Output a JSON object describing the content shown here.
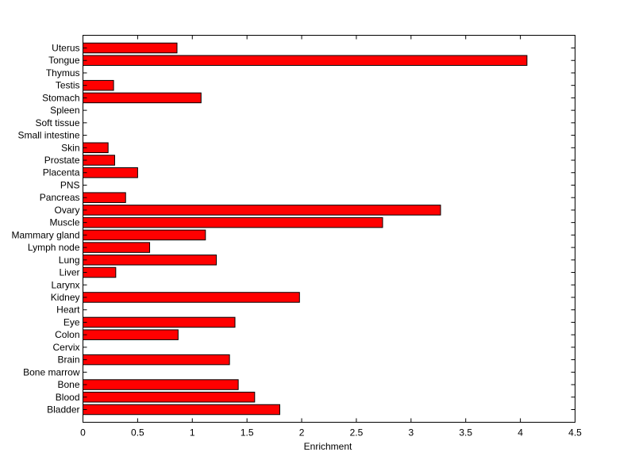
{
  "chart_data": {
    "type": "bar",
    "orientation": "horizontal",
    "title": "",
    "xlabel": "Enrichment",
    "ylabel": "",
    "xlim": [
      0,
      4.5
    ],
    "xticks": [
      "0",
      "0.5",
      "1",
      "1.5",
      "2",
      "2.5",
      "3",
      "3.5",
      "4",
      "4.5"
    ],
    "grid": false,
    "bar_color": "#ff0000",
    "categories": [
      "Bladder",
      "Blood",
      "Bone",
      "Bone marrow",
      "Brain",
      "Cervix",
      "Colon",
      "Eye",
      "Heart",
      "Kidney",
      "Larynx",
      "Liver",
      "Lung",
      "Lymph node",
      "Mammary gland",
      "Muscle",
      "Ovary",
      "Pancreas",
      "PNS",
      "Placenta",
      "Prostate",
      "Skin",
      "Small intestine",
      "Soft tissue",
      "Spleen",
      "Stomach",
      "Testis",
      "Thymus",
      "Tongue",
      "Uterus"
    ],
    "values": [
      1.8,
      1.57,
      1.42,
      0,
      1.34,
      0,
      0.87,
      1.39,
      0,
      1.98,
      0,
      0.3,
      1.22,
      0.61,
      1.12,
      2.74,
      3.27,
      0.39,
      0,
      0.5,
      0.29,
      0.23,
      0,
      0,
      0,
      1.08,
      0.28,
      0,
      4.06,
      0.86
    ]
  }
}
